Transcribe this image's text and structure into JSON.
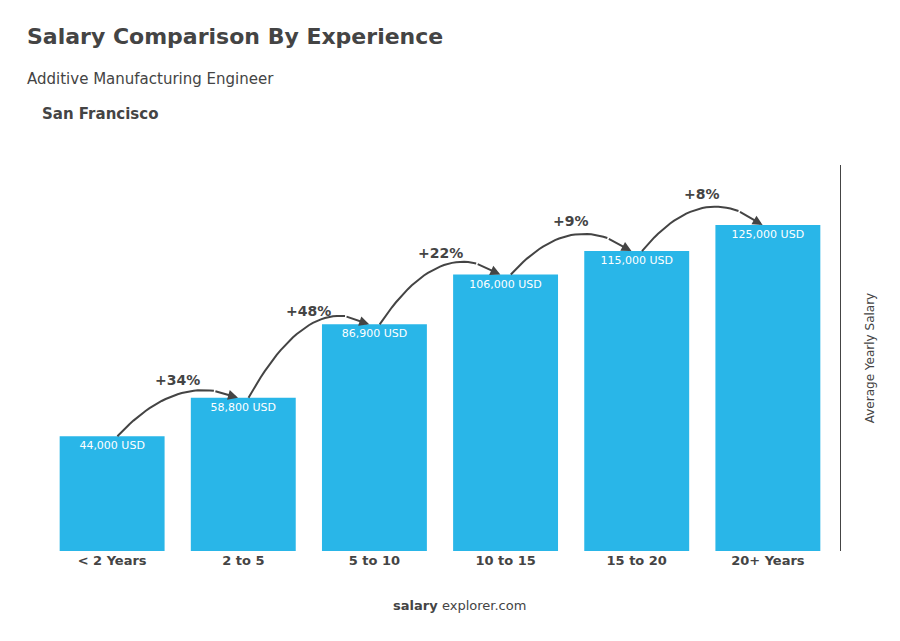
{
  "chart_data": {
    "type": "bar",
    "title": "Salary Comparison By Experience",
    "subtitle": "Additive Manufacturing Engineer",
    "annotations": [
      "San Francisco",
      "salary",
      "explorer.com"
    ],
    "ylabel": "Average Yearly Salary",
    "categories": [
      "< 2 Years",
      "2 to 5",
      "5 to 10",
      "10 to 15",
      "15 to 20",
      "20+ Years"
    ],
    "values": [
      44000,
      58800,
      86900,
      106000,
      115000,
      125000
    ],
    "value_labels": [
      "44,000 USD",
      "58,800 USD",
      "86,900 USD",
      "106,000 USD",
      "115,000 USD",
      "125,000 USD"
    ],
    "data_labels": true,
    "change_labels": [
      null,
      "+34%",
      "+48%",
      "+22%",
      "+9%",
      "+8%"
    ],
    "color": "#29b6e8",
    "ylim": [
      0,
      148000
    ],
    "yticks": [],
    "grid": false,
    "tick_labels": "x"
  }
}
